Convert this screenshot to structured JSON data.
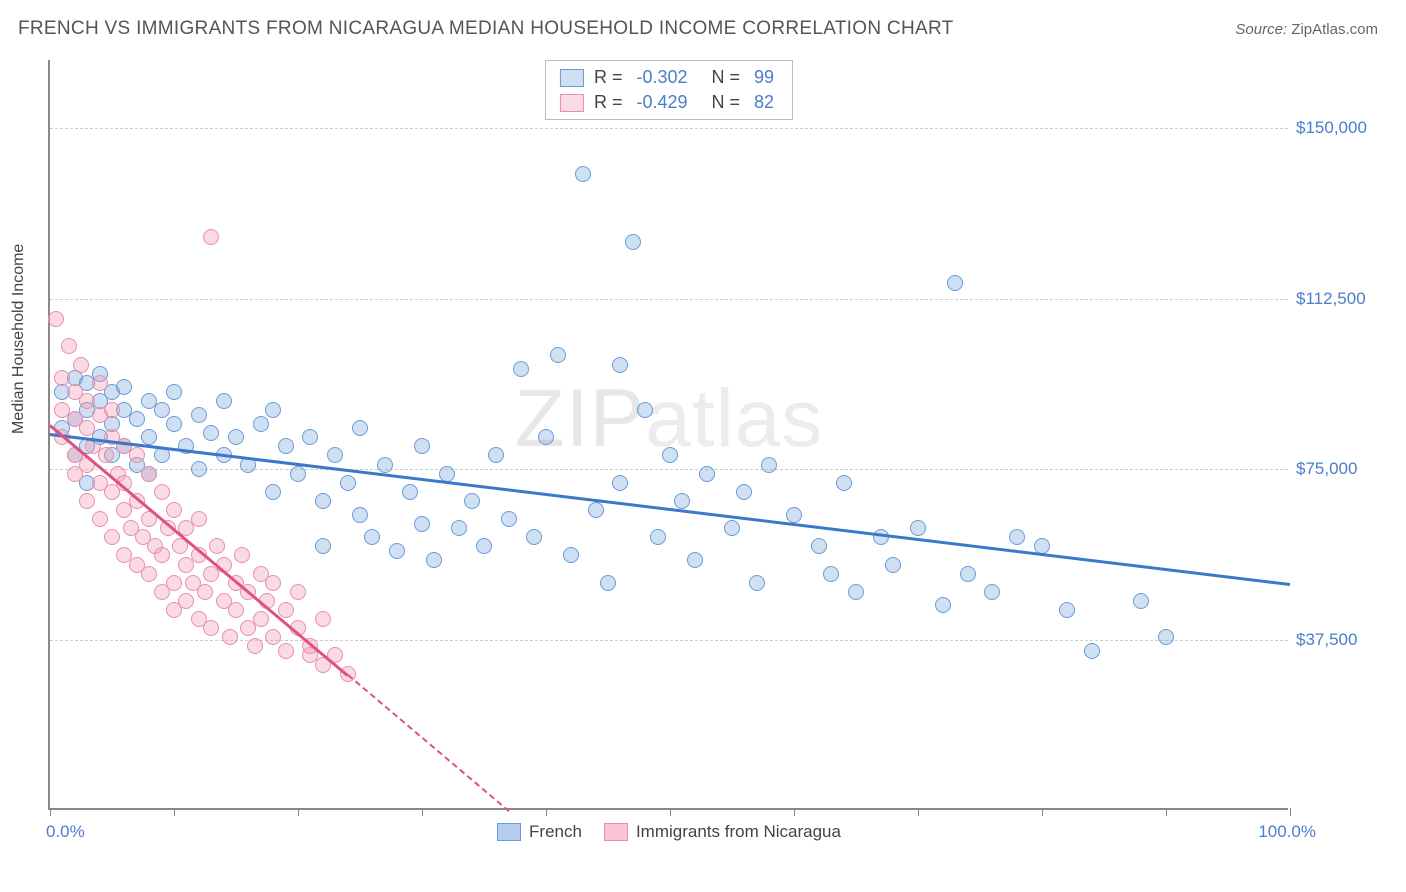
{
  "title": "FRENCH VS IMMIGRANTS FROM NICARAGUA MEDIAN HOUSEHOLD INCOME CORRELATION CHART",
  "source": {
    "label": "Source:",
    "name": "ZipAtlas.com"
  },
  "y_axis": {
    "label": "Median Household Income"
  },
  "x_axis": {
    "min_label": "0.0%",
    "max_label": "100.0%"
  },
  "watermark": {
    "bold": "ZIP",
    "thin": "atlas"
  },
  "chart": {
    "type": "scatter",
    "xlim": [
      0,
      100
    ],
    "ylim": [
      0,
      165000
    ],
    "y_ticks": [
      37500,
      75000,
      112500,
      150000
    ],
    "y_tick_labels": [
      "$37,500",
      "$75,000",
      "$112,500",
      "$150,000"
    ],
    "x_tick_positions": [
      0,
      10,
      20,
      30,
      40,
      50,
      60,
      70,
      80,
      90,
      100
    ],
    "background_color": "#ffffff",
    "grid_color": "#cccccc",
    "axis_color": "#888888",
    "tick_label_color": "#4a7ec8",
    "point_radius": 8,
    "series": [
      {
        "name": "French",
        "fill": "rgba(120,165,220,0.35)",
        "stroke": "#6a9bd8",
        "line_color": "#3a78c8",
        "R": "-0.302",
        "N": "99",
        "trend": {
          "x1": 0,
          "y1": 83000,
          "x2": 100,
          "y2": 50000,
          "dash": false
        },
        "points": [
          [
            1,
            84000
          ],
          [
            1,
            92000
          ],
          [
            2,
            86000
          ],
          [
            2,
            78000
          ],
          [
            2,
            95000
          ],
          [
            3,
            88000
          ],
          [
            3,
            80000
          ],
          [
            3,
            94000
          ],
          [
            3,
            72000
          ],
          [
            4,
            90000
          ],
          [
            4,
            82000
          ],
          [
            4,
            96000
          ],
          [
            5,
            85000
          ],
          [
            5,
            92000
          ],
          [
            5,
            78000
          ],
          [
            6,
            88000
          ],
          [
            6,
            80000
          ],
          [
            6,
            93000
          ],
          [
            7,
            86000
          ],
          [
            7,
            76000
          ],
          [
            8,
            90000
          ],
          [
            8,
            82000
          ],
          [
            8,
            74000
          ],
          [
            9,
            88000
          ],
          [
            9,
            78000
          ],
          [
            10,
            85000
          ],
          [
            10,
            92000
          ],
          [
            11,
            80000
          ],
          [
            12,
            87000
          ],
          [
            12,
            75000
          ],
          [
            13,
            83000
          ],
          [
            14,
            78000
          ],
          [
            14,
            90000
          ],
          [
            15,
            82000
          ],
          [
            16,
            76000
          ],
          [
            17,
            85000
          ],
          [
            18,
            70000
          ],
          [
            18,
            88000
          ],
          [
            19,
            80000
          ],
          [
            20,
            74000
          ],
          [
            21,
            82000
          ],
          [
            22,
            58000
          ],
          [
            22,
            68000
          ],
          [
            23,
            78000
          ],
          [
            24,
            72000
          ],
          [
            25,
            65000
          ],
          [
            25,
            84000
          ],
          [
            26,
            60000
          ],
          [
            27,
            76000
          ],
          [
            28,
            57000
          ],
          [
            29,
            70000
          ],
          [
            30,
            63000
          ],
          [
            30,
            80000
          ],
          [
            31,
            55000
          ],
          [
            32,
            74000
          ],
          [
            33,
            62000
          ],
          [
            34,
            68000
          ],
          [
            35,
            58000
          ],
          [
            36,
            78000
          ],
          [
            37,
            64000
          ],
          [
            38,
            97000
          ],
          [
            39,
            60000
          ],
          [
            40,
            82000
          ],
          [
            41,
            100000
          ],
          [
            42,
            56000
          ],
          [
            43,
            140000
          ],
          [
            44,
            66000
          ],
          [
            45,
            50000
          ],
          [
            46,
            98000
          ],
          [
            46,
            72000
          ],
          [
            47,
            125000
          ],
          [
            48,
            88000
          ],
          [
            49,
            60000
          ],
          [
            50,
            78000
          ],
          [
            51,
            68000
          ],
          [
            52,
            55000
          ],
          [
            53,
            74000
          ],
          [
            55,
            62000
          ],
          [
            56,
            70000
          ],
          [
            57,
            50000
          ],
          [
            58,
            76000
          ],
          [
            60,
            65000
          ],
          [
            62,
            58000
          ],
          [
            63,
            52000
          ],
          [
            64,
            72000
          ],
          [
            65,
            48000
          ],
          [
            67,
            60000
          ],
          [
            68,
            54000
          ],
          [
            70,
            62000
          ],
          [
            72,
            45000
          ],
          [
            73,
            116000
          ],
          [
            74,
            52000
          ],
          [
            76,
            48000
          ],
          [
            78,
            60000
          ],
          [
            80,
            58000
          ],
          [
            82,
            44000
          ],
          [
            84,
            35000
          ],
          [
            88,
            46000
          ],
          [
            90,
            38000
          ]
        ]
      },
      {
        "name": "Immigrants from Nicaragua",
        "fill": "rgba(240,150,175,0.35)",
        "stroke": "#e890aa",
        "line_color": "#e05080",
        "R": "-0.429",
        "N": "82",
        "trend": {
          "x1": 0,
          "y1": 85000,
          "x2": 24,
          "y2": 30000,
          "dash": false
        },
        "trend_ext": {
          "x1": 24,
          "y1": 30000,
          "x2": 37,
          "y2": 0,
          "dash": true
        },
        "points": [
          [
            0.5,
            108000
          ],
          [
            1,
            88000
          ],
          [
            1,
            82000
          ],
          [
            1,
            95000
          ],
          [
            1.5,
            102000
          ],
          [
            2,
            86000
          ],
          [
            2,
            78000
          ],
          [
            2,
            92000
          ],
          [
            2,
            74000
          ],
          [
            2.5,
            98000
          ],
          [
            3,
            84000
          ],
          [
            3,
            76000
          ],
          [
            3,
            90000
          ],
          [
            3,
            68000
          ],
          [
            3.5,
            80000
          ],
          [
            4,
            87000
          ],
          [
            4,
            72000
          ],
          [
            4,
            64000
          ],
          [
            4,
            94000
          ],
          [
            4.5,
            78000
          ],
          [
            5,
            70000
          ],
          [
            5,
            82000
          ],
          [
            5,
            60000
          ],
          [
            5,
            88000
          ],
          [
            5.5,
            74000
          ],
          [
            6,
            66000
          ],
          [
            6,
            80000
          ],
          [
            6,
            56000
          ],
          [
            6,
            72000
          ],
          [
            6.5,
            62000
          ],
          [
            7,
            78000
          ],
          [
            7,
            54000
          ],
          [
            7,
            68000
          ],
          [
            7.5,
            60000
          ],
          [
            8,
            52000
          ],
          [
            8,
            74000
          ],
          [
            8,
            64000
          ],
          [
            8.5,
            58000
          ],
          [
            9,
            48000
          ],
          [
            9,
            70000
          ],
          [
            9,
            56000
          ],
          [
            9.5,
            62000
          ],
          [
            10,
            50000
          ],
          [
            10,
            66000
          ],
          [
            10,
            44000
          ],
          [
            10.5,
            58000
          ],
          [
            11,
            54000
          ],
          [
            11,
            46000
          ],
          [
            11,
            62000
          ],
          [
            11.5,
            50000
          ],
          [
            12,
            56000
          ],
          [
            12,
            42000
          ],
          [
            12,
            64000
          ],
          [
            12.5,
            48000
          ],
          [
            13,
            126000
          ],
          [
            13,
            52000
          ],
          [
            13,
            40000
          ],
          [
            13.5,
            58000
          ],
          [
            14,
            46000
          ],
          [
            14,
            54000
          ],
          [
            14.5,
            38000
          ],
          [
            15,
            50000
          ],
          [
            15,
            44000
          ],
          [
            15.5,
            56000
          ],
          [
            16,
            40000
          ],
          [
            16,
            48000
          ],
          [
            16.5,
            36000
          ],
          [
            17,
            52000
          ],
          [
            17,
            42000
          ],
          [
            17.5,
            46000
          ],
          [
            18,
            38000
          ],
          [
            18,
            50000
          ],
          [
            19,
            35000
          ],
          [
            19,
            44000
          ],
          [
            20,
            40000
          ],
          [
            20,
            48000
          ],
          [
            21,
            36000
          ],
          [
            22,
            42000
          ],
          [
            22,
            32000
          ],
          [
            23,
            34000
          ],
          [
            24,
            30000
          ],
          [
            21,
            34000
          ]
        ]
      }
    ]
  },
  "legend_bottom": [
    {
      "label": "French",
      "fill": "rgba(120,165,220,0.55)",
      "stroke": "#6a9bd8"
    },
    {
      "label": "Immigrants from Nicaragua",
      "fill": "rgba(240,150,175,0.55)",
      "stroke": "#e890aa"
    }
  ]
}
